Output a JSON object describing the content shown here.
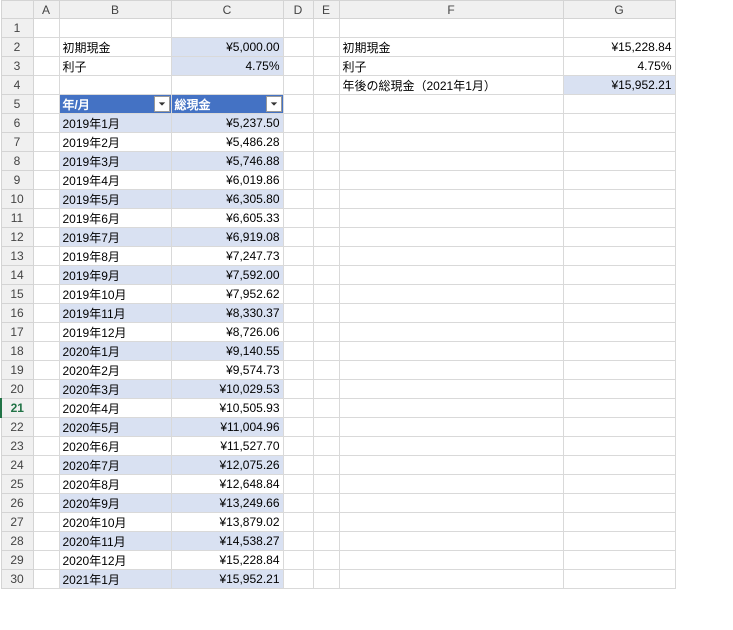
{
  "columns": [
    "A",
    "B",
    "C",
    "D",
    "E",
    "F",
    "G"
  ],
  "rowCount": 30,
  "activeRow": 21,
  "summaryLeft": {
    "r2_label": "初期現金",
    "r2_value": "¥5,000.00",
    "r3_label": "利子",
    "r3_value": "4.75%"
  },
  "summaryRight": {
    "r2_label": "初期現金",
    "r2_value": "¥15,228.84",
    "r3_label": "利子",
    "r3_value": "4.75%",
    "r4_label": "年後の総現金（2021年1月）",
    "r4_value": "¥15,952.21"
  },
  "tableHeader": {
    "b": "年/月",
    "c": "総現金"
  },
  "rows": [
    {
      "ym": "2019年1月",
      "val": "¥5,237.50",
      "band": true
    },
    {
      "ym": "2019年2月",
      "val": "¥5,486.28",
      "band": false
    },
    {
      "ym": "2019年3月",
      "val": "¥5,746.88",
      "band": true
    },
    {
      "ym": "2019年4月",
      "val": "¥6,019.86",
      "band": false
    },
    {
      "ym": "2019年5月",
      "val": "¥6,305.80",
      "band": true
    },
    {
      "ym": "2019年6月",
      "val": "¥6,605.33",
      "band": false
    },
    {
      "ym": "2019年7月",
      "val": "¥6,919.08",
      "band": true
    },
    {
      "ym": "2019年8月",
      "val": "¥7,247.73",
      "band": false
    },
    {
      "ym": "2019年9月",
      "val": "¥7,592.00",
      "band": true
    },
    {
      "ym": "2019年10月",
      "val": "¥7,952.62",
      "band": false
    },
    {
      "ym": "2019年11月",
      "val": "¥8,330.37",
      "band": true
    },
    {
      "ym": "2019年12月",
      "val": "¥8,726.06",
      "band": false
    },
    {
      "ym": "2020年1月",
      "val": "¥9,140.55",
      "band": true
    },
    {
      "ym": "2020年2月",
      "val": "¥9,574.73",
      "band": false
    },
    {
      "ym": "2020年3月",
      "val": "¥10,029.53",
      "band": true
    },
    {
      "ym": "2020年4月",
      "val": "¥10,505.93",
      "band": false
    },
    {
      "ym": "2020年5月",
      "val": "¥11,004.96",
      "band": true
    },
    {
      "ym": "2020年6月",
      "val": "¥11,527.70",
      "band": false
    },
    {
      "ym": "2020年7月",
      "val": "¥12,075.26",
      "band": true
    },
    {
      "ym": "2020年8月",
      "val": "¥12,648.84",
      "band": false
    },
    {
      "ym": "2020年9月",
      "val": "¥13,249.66",
      "band": true
    },
    {
      "ym": "2020年10月",
      "val": "¥13,879.02",
      "band": false
    },
    {
      "ym": "2020年11月",
      "val": "¥14,538.27",
      "band": true
    },
    {
      "ym": "2020年12月",
      "val": "¥15,228.84",
      "band": false
    },
    {
      "ym": "2021年1月",
      "val": "¥15,952.21",
      "band": true
    }
  ],
  "style": {
    "headerBg": "#4472c4",
    "headerFg": "#ffffff",
    "bandBg": "#d9e1f2",
    "shadeBg": "#d9e1f2",
    "gridLine": "#d9d9d9",
    "boxLine": "#808080"
  }
}
